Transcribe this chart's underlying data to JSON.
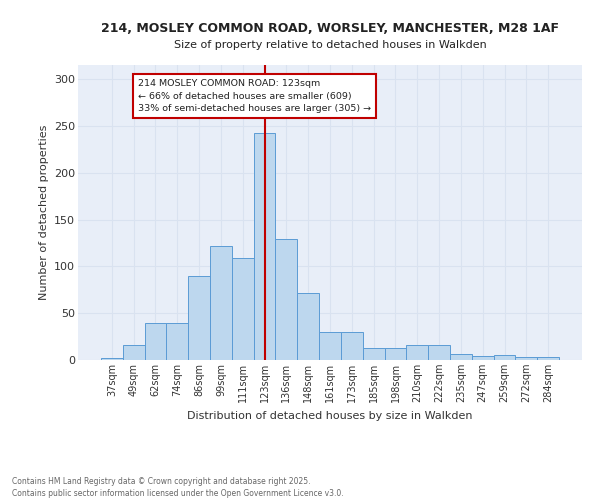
{
  "title1": "214, MOSLEY COMMON ROAD, WORSLEY, MANCHESTER, M28 1AF",
  "title2": "Size of property relative to detached houses in Walkden",
  "xlabel": "Distribution of detached houses by size in Walkden",
  "ylabel": "Number of detached properties",
  "categories": [
    "37sqm",
    "49sqm",
    "62sqm",
    "74sqm",
    "86sqm",
    "99sqm",
    "111sqm",
    "123sqm",
    "136sqm",
    "148sqm",
    "161sqm",
    "173sqm",
    "185sqm",
    "198sqm",
    "210sqm",
    "222sqm",
    "235sqm",
    "247sqm",
    "259sqm",
    "272sqm",
    "284sqm"
  ],
  "values": [
    2,
    16,
    40,
    40,
    90,
    122,
    109,
    242,
    129,
    72,
    30,
    30,
    13,
    13,
    16,
    16,
    6,
    4,
    5,
    3,
    3
  ],
  "bar_color": "#bdd7ee",
  "bar_edge_color": "#5b9bd5",
  "vline_idx": 7,
  "vline_color": "#c00000",
  "annotation_text": "214 MOSLEY COMMON ROAD: 123sqm\n← 66% of detached houses are smaller (609)\n33% of semi-detached houses are larger (305) →",
  "annotation_box_color": "#ffffff",
  "annotation_box_edge": "#c00000",
  "grid_color": "#d9e2f0",
  "bg_color": "#e8eef8",
  "footer": "Contains HM Land Registry data © Crown copyright and database right 2025.\nContains public sector information licensed under the Open Government Licence v3.0.",
  "ylim": [
    0,
    315
  ],
  "yticks": [
    0,
    50,
    100,
    150,
    200,
    250,
    300
  ]
}
